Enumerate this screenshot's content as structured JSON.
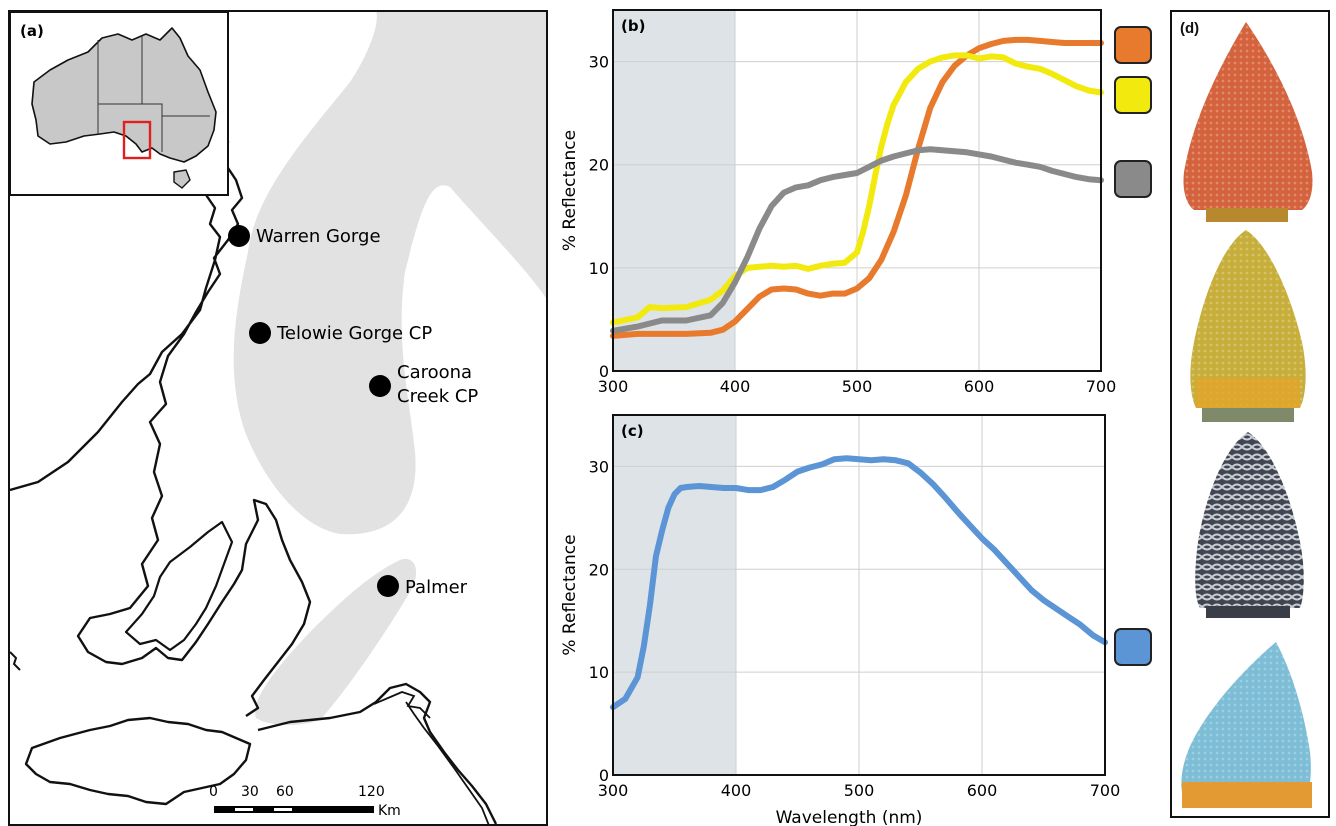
{
  "panel_a": {
    "label": "(a)",
    "sites": [
      "Warren Gorge",
      "Telowie Gorge CP",
      "Caroona",
      "Creek CP",
      "Palmer"
    ],
    "scale": {
      "ticks": [
        "0",
        "30",
        "60",
        "120"
      ],
      "unit": "Km"
    }
  },
  "panel_d": {
    "label": "(d)"
  },
  "colors": {
    "orange": "#E87A2D",
    "yellow": "#F2EA0E",
    "gray": "#8A8A8A",
    "blue": "#5B95D6",
    "uv_shade": "#DDE3E6"
  },
  "chart_data": [
    {
      "type": "line",
      "panel_label": "(b)",
      "xlabel": "",
      "ylabel": "% Reflectance",
      "xlim": [
        300,
        700
      ],
      "ylim": [
        0,
        35
      ],
      "xticks": [
        "300",
        "400",
        "500",
        "600",
        "700"
      ],
      "yticks": [
        "0",
        "10",
        "20",
        "30"
      ],
      "shaded_region": [
        300,
        400
      ],
      "grid": true,
      "series": [
        {
          "color": "#E87A2D",
          "x": [
            300,
            320,
            340,
            360,
            380,
            390,
            400,
            410,
            420,
            430,
            440,
            450,
            460,
            470,
            480,
            490,
            500,
            510,
            520,
            530,
            540,
            550,
            560,
            570,
            580,
            590,
            600,
            610,
            620,
            630,
            640,
            650,
            660,
            670,
            680,
            690,
            700
          ],
          "y": [
            3.4,
            3.6,
            3.6,
            3.6,
            3.7,
            4.0,
            4.8,
            6.0,
            7.2,
            7.9,
            8.0,
            7.9,
            7.5,
            7.3,
            7.5,
            7.5,
            8.0,
            9.0,
            10.8,
            13.5,
            17.0,
            21.5,
            25.5,
            28.0,
            29.6,
            30.6,
            31.3,
            31.7,
            32.0,
            32.1,
            32.1,
            32.0,
            31.9,
            31.8,
            31.8,
            31.8,
            31.8
          ]
        },
        {
          "color": "#F2EA0E",
          "x": [
            300,
            320,
            330,
            340,
            360,
            380,
            390,
            400,
            410,
            420,
            430,
            440,
            450,
            460,
            470,
            480,
            490,
            500,
            505,
            510,
            515,
            520,
            525,
            530,
            540,
            550,
            560,
            570,
            580,
            590,
            600,
            610,
            620,
            630,
            640,
            650,
            660,
            670,
            680,
            690,
            700
          ],
          "y": [
            4.7,
            5.2,
            6.2,
            6.1,
            6.2,
            6.9,
            7.8,
            9.2,
            10.0,
            10.1,
            10.2,
            10.1,
            10.2,
            9.9,
            10.2,
            10.4,
            10.5,
            11.5,
            13.5,
            16.0,
            19.0,
            21.8,
            24.0,
            25.8,
            28.0,
            29.3,
            30.0,
            30.4,
            30.6,
            30.6,
            30.3,
            30.5,
            30.4,
            29.8,
            29.5,
            29.3,
            28.8,
            28.2,
            27.6,
            27.2,
            27.0
          ]
        },
        {
          "color": "#8A8A8A",
          "x": [
            300,
            320,
            340,
            360,
            380,
            390,
            400,
            410,
            420,
            430,
            440,
            450,
            460,
            470,
            480,
            490,
            500,
            510,
            520,
            530,
            540,
            550,
            560,
            570,
            580,
            590,
            600,
            610,
            620,
            630,
            640,
            650,
            660,
            670,
            680,
            690,
            700
          ],
          "y": [
            3.9,
            4.3,
            4.9,
            4.9,
            5.4,
            6.6,
            8.6,
            11.0,
            13.8,
            16.0,
            17.3,
            17.8,
            18.0,
            18.5,
            18.8,
            19.0,
            19.2,
            19.8,
            20.4,
            20.8,
            21.1,
            21.4,
            21.5,
            21.4,
            21.3,
            21.2,
            21.0,
            20.8,
            20.5,
            20.2,
            20.0,
            19.8,
            19.4,
            19.1,
            18.8,
            18.6,
            18.5
          ]
        }
      ]
    },
    {
      "type": "line",
      "panel_label": "(c)",
      "xlabel": "Wavelength (nm)",
      "ylabel": "% Reflectance",
      "xlim": [
        300,
        700
      ],
      "ylim": [
        0,
        35
      ],
      "xticks": [
        "300",
        "400",
        "500",
        "600",
        "700"
      ],
      "yticks": [
        "0",
        "10",
        "20",
        "30"
      ],
      "shaded_region": [
        300,
        400
      ],
      "grid": true,
      "series": [
        {
          "color": "#5B95D6",
          "x": [
            300,
            310,
            320,
            325,
            330,
            335,
            340,
            345,
            350,
            355,
            360,
            370,
            380,
            390,
            400,
            410,
            420,
            430,
            440,
            450,
            460,
            470,
            480,
            490,
            500,
            510,
            520,
            530,
            540,
            550,
            560,
            570,
            580,
            590,
            600,
            610,
            620,
            630,
            640,
            650,
            660,
            670,
            680,
            690,
            700
          ],
          "y": [
            6.6,
            7.4,
            9.5,
            12.5,
            16.5,
            21.3,
            23.8,
            26.0,
            27.3,
            27.9,
            28.0,
            28.1,
            28.0,
            27.9,
            27.9,
            27.7,
            27.7,
            28.0,
            28.7,
            29.5,
            29.9,
            30.2,
            30.7,
            30.8,
            30.7,
            30.6,
            30.7,
            30.6,
            30.3,
            29.4,
            28.3,
            27.0,
            25.6,
            24.3,
            23.0,
            21.9,
            20.6,
            19.3,
            18.0,
            17.0,
            16.2,
            15.4,
            14.6,
            13.6,
            12.9
          ]
        }
      ]
    }
  ]
}
